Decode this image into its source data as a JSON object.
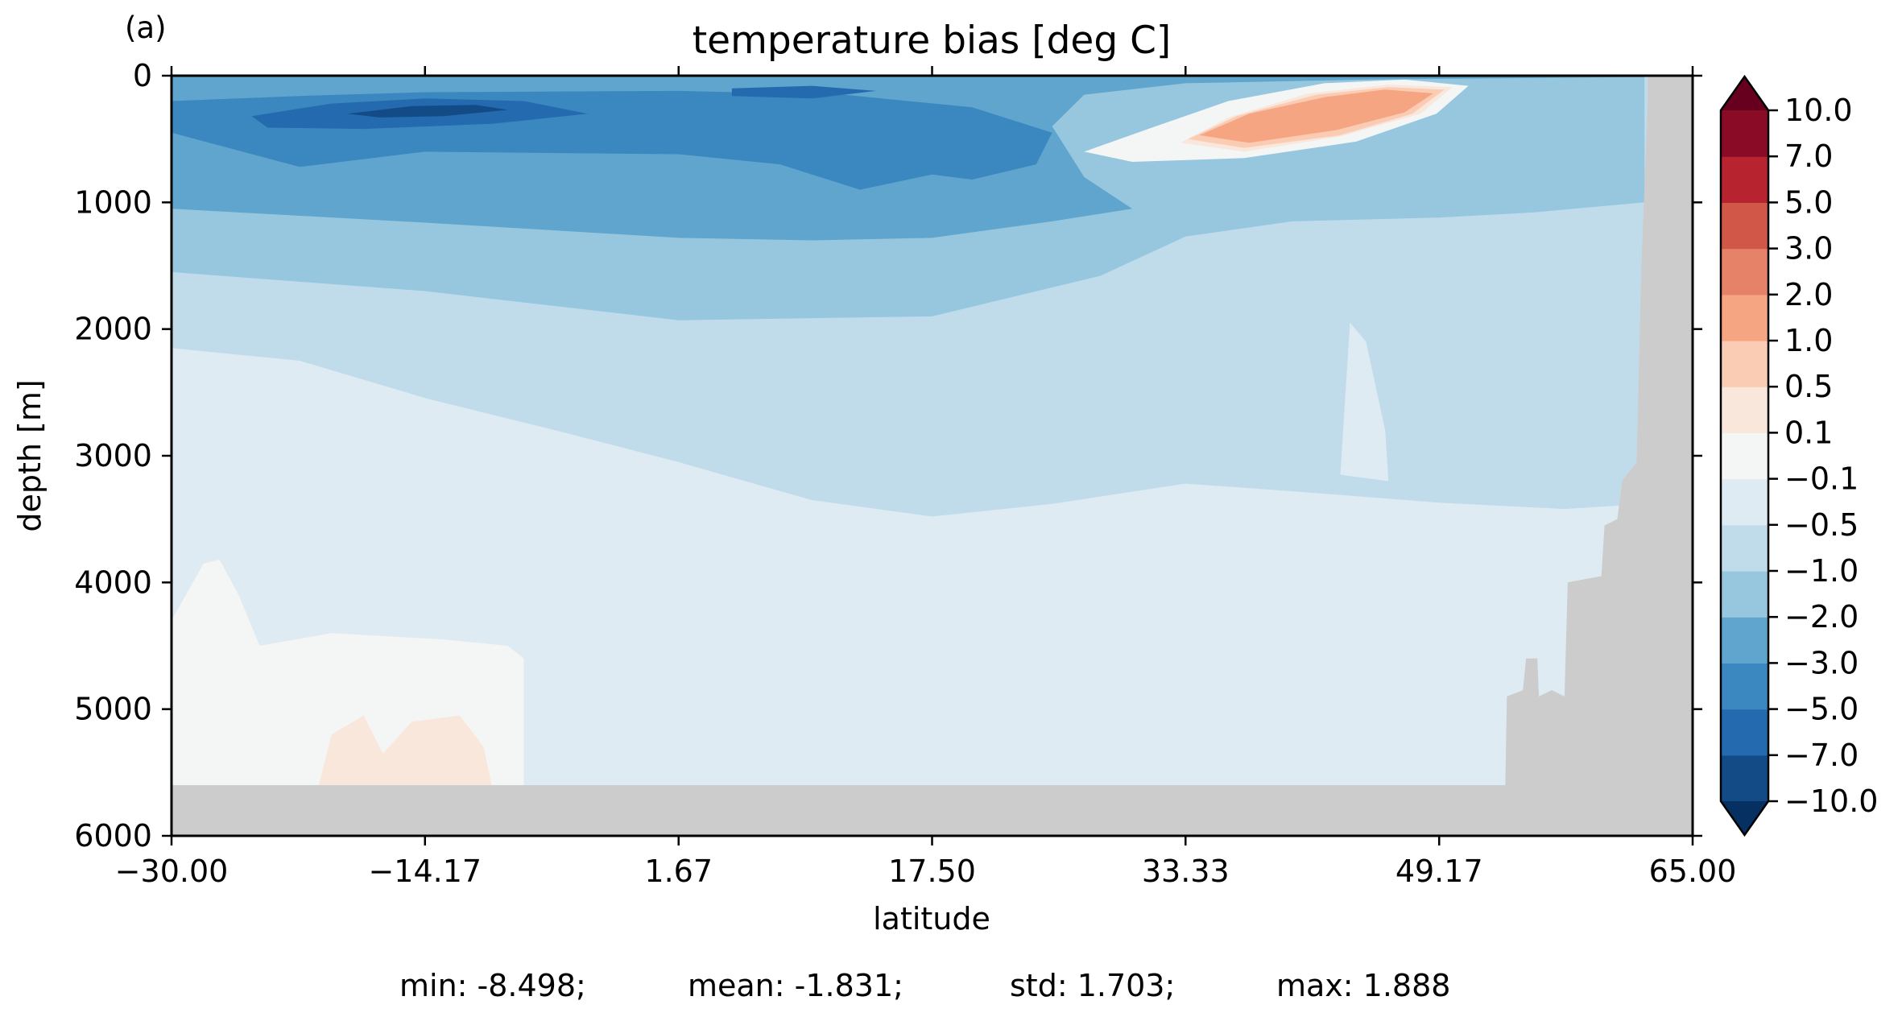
{
  "panel_label": "(a)",
  "stats": {
    "min": "min: -8.498;",
    "mean": "mean: -1.831;",
    "std": "std: 1.703;",
    "max": "max: 1.888"
  },
  "chart_data": {
    "type": "heatmap",
    "title": "temperature bias [deg C]",
    "xlabel": "latitude",
    "ylabel": "depth [m]",
    "xlim": [
      -30.0,
      65.0
    ],
    "ylim": [
      6000,
      0
    ],
    "y_inverted": true,
    "x_ticks": [
      -30.0,
      -14.17,
      1.67,
      17.5,
      33.33,
      49.17,
      65.0
    ],
    "x_tick_labels": [
      "−30.00",
      "−14.17",
      "1.67",
      "17.50",
      "33.33",
      "49.17",
      "65.00"
    ],
    "y_ticks": [
      0,
      1000,
      2000,
      3000,
      4000,
      5000,
      6000
    ],
    "y_tick_labels": [
      "0",
      "1000",
      "2000",
      "3000",
      "4000",
      "5000",
      "6000"
    ],
    "grid": false,
    "colormap": "RdBu_r",
    "land_color": "#cccccc",
    "colorbar": {
      "position": "right",
      "extend": "both",
      "levels": [
        -10.0,
        -7.0,
        -5.0,
        -3.0,
        -2.0,
        -1.0,
        -0.5,
        -0.1,
        0.1,
        0.5,
        1.0,
        2.0,
        3.0,
        5.0,
        7.0,
        10.0
      ],
      "tick_labels": [
        "−10.0",
        "−7.0",
        "−5.0",
        "−3.0",
        "−2.0",
        "−1.0",
        "−0.5",
        "−0.1",
        "0.1",
        "0.5",
        "1.0",
        "2.0",
        "3.0",
        "5.0",
        "7.0",
        "10.0"
      ],
      "colors": [
        "#134b87",
        "#246aae",
        "#3a88bf",
        "#5fa5cd",
        "#97c7df",
        "#c0dceb",
        "#deebf2",
        "#f4f6f6",
        "#fae7dc",
        "#fbccb4",
        "#f6a582",
        "#e58267",
        "#d15749",
        "#b7232f",
        "#8a0b25"
      ],
      "under_color": "#053061",
      "over_color": "#67001f"
    },
    "regions": [
      {
        "bias": "-1.0 to -0.5",
        "color": "#c0dceb",
        "polygon": [
          [
            -30,
            0
          ],
          [
            65,
            0
          ],
          [
            65,
            6000
          ],
          [
            -30,
            6000
          ]
        ]
      },
      {
        "bias": "-0.5 to -0.1",
        "color": "#deebf2",
        "polygon": [
          [
            -30,
            2150
          ],
          [
            -22,
            2250
          ],
          [
            -14,
            2550
          ],
          [
            -6,
            2800
          ],
          [
            1.67,
            3050
          ],
          [
            10,
            3350
          ],
          [
            17.5,
            3480
          ],
          [
            25,
            3380
          ],
          [
            33.33,
            3220
          ],
          [
            40,
            3280
          ],
          [
            49.17,
            3370
          ],
          [
            57,
            3420
          ],
          [
            62,
            3380
          ],
          [
            62,
            5600
          ],
          [
            -30,
            5600
          ]
        ]
      },
      {
        "bias": "-2.0 to -1.0",
        "color": "#97c7df",
        "polygon": [
          [
            -30,
            0
          ],
          [
            65,
            0
          ],
          [
            62,
            0
          ],
          [
            62,
            1000
          ],
          [
            55,
            1080
          ],
          [
            49.17,
            1120
          ],
          [
            40,
            1150
          ],
          [
            33.33,
            1270
          ],
          [
            28,
            1580
          ],
          [
            17.5,
            1900
          ],
          [
            1.67,
            1930
          ],
          [
            -14.17,
            1700
          ],
          [
            -30,
            1550
          ]
        ]
      },
      {
        "bias": "-3.0 to -2.0",
        "color": "#5fa5cd",
        "polygon": [
          [
            -30,
            0
          ],
          [
            62,
            0
          ],
          [
            62,
            10
          ],
          [
            45,
            30
          ],
          [
            33.33,
            60
          ],
          [
            27,
            150
          ],
          [
            25,
            400
          ],
          [
            27,
            800
          ],
          [
            30,
            1050
          ],
          [
            25,
            1150
          ],
          [
            17.5,
            1280
          ],
          [
            10,
            1300
          ],
          [
            1.67,
            1280
          ],
          [
            -14.17,
            1160
          ],
          [
            -30,
            1050
          ]
        ]
      },
      {
        "bias": "-5.0 to -3.0",
        "color": "#3a88bf",
        "polygon": [
          [
            -30,
            200
          ],
          [
            -22,
            160
          ],
          [
            -14.17,
            130
          ],
          [
            1.67,
            120
          ],
          [
            12,
            150
          ],
          [
            20,
            250
          ],
          [
            25,
            450
          ],
          [
            24,
            700
          ],
          [
            20,
            820
          ],
          [
            17.5,
            780
          ],
          [
            13,
            900
          ],
          [
            8,
            700
          ],
          [
            1.67,
            620
          ],
          [
            -14.17,
            600
          ],
          [
            -22,
            720
          ],
          [
            -30,
            450
          ]
        ]
      },
      {
        "bias": "-7.0 to -5.0",
        "color": "#246aae",
        "polygon": [
          [
            -25,
            320
          ],
          [
            -20,
            220
          ],
          [
            -14.17,
            180
          ],
          [
            -8,
            200
          ],
          [
            -4,
            300
          ],
          [
            -10,
            380
          ],
          [
            -18,
            420
          ],
          [
            -24,
            410
          ]
        ]
      },
      {
        "bias": "-10.0 to -7.0",
        "color": "#134b87",
        "polygon": [
          [
            -19,
            300
          ],
          [
            -15,
            240
          ],
          [
            -11,
            230
          ],
          [
            -9,
            270
          ],
          [
            -13,
            320
          ],
          [
            -17,
            330
          ]
        ]
      },
      {
        "bias": "-7.0 to -5.0",
        "color": "#246aae",
        "polygon": [
          [
            5,
            100
          ],
          [
            10,
            80
          ],
          [
            14,
            120
          ],
          [
            10,
            180
          ],
          [
            5,
            160
          ]
        ]
      },
      {
        "bias": "-0.1 to 0.1",
        "color": "#f4f6f6",
        "polygon": [
          [
            27,
            600
          ],
          [
            31,
            420
          ],
          [
            36,
            200
          ],
          [
            42,
            60
          ],
          [
            47,
            30
          ],
          [
            51,
            80
          ],
          [
            49,
            300
          ],
          [
            44,
            520
          ],
          [
            37,
            650
          ],
          [
            30,
            680
          ]
        ]
      },
      {
        "bias": "0.1 to 0.5",
        "color": "#fae7dc",
        "polygon": [
          [
            33,
            530
          ],
          [
            36,
            330
          ],
          [
            41,
            140
          ],
          [
            46,
            70
          ],
          [
            50,
            90
          ],
          [
            48,
            300
          ],
          [
            43,
            480
          ],
          [
            37,
            600
          ]
        ]
      },
      {
        "bias": "0.5 to 1.0",
        "color": "#fbccb4",
        "polygon": [
          [
            33.5,
            500
          ],
          [
            36.5,
            320
          ],
          [
            41.5,
            150
          ],
          [
            46,
            90
          ],
          [
            49.5,
            110
          ],
          [
            47.5,
            300
          ],
          [
            43,
            470
          ],
          [
            37,
            570
          ]
        ]
      },
      {
        "bias": "1.0 to 2.0",
        "color": "#f6a582",
        "polygon": [
          [
            34.2,
            470
          ],
          [
            37.3,
            300
          ],
          [
            42,
            170
          ],
          [
            45.8,
            110
          ],
          [
            48.8,
            140
          ],
          [
            47,
            290
          ],
          [
            42.7,
            430
          ],
          [
            37.3,
            530
          ]
        ]
      },
      {
        "bias": "-0.5 to -0.1",
        "color": "#deebf2",
        "polygon": [
          [
            43,
            3150
          ],
          [
            43.6,
            1950
          ],
          [
            44.6,
            2100
          ],
          [
            45.8,
            2800
          ],
          [
            46,
            3200
          ]
        ]
      },
      {
        "bias": "-0.1 to 0.1",
        "color": "#f4f6f6",
        "polygon": [
          [
            -30,
            4300
          ],
          [
            -28,
            3850
          ],
          [
            -27,
            3820
          ],
          [
            -25.8,
            4100
          ],
          [
            -24.5,
            4500
          ],
          [
            -20,
            4400
          ],
          [
            -13,
            4450
          ],
          [
            -9,
            4500
          ],
          [
            -8,
            4600
          ],
          [
            -8,
            5600
          ],
          [
            -30,
            5600
          ]
        ]
      },
      {
        "bias": "0.1 to 0.5",
        "color": "#fae7dc",
        "polygon": [
          [
            -20.8,
            5600
          ],
          [
            -20,
            5200
          ],
          [
            -18,
            5050
          ],
          [
            -16.8,
            5350
          ],
          [
            -15,
            5100
          ],
          [
            -12,
            5050
          ],
          [
            -10.5,
            5300
          ],
          [
            -10,
            5600
          ]
        ]
      }
    ],
    "land": [
      {
        "polygon": [
          [
            -30,
            5600
          ],
          [
            65,
            5600
          ],
          [
            65,
            6000
          ],
          [
            -30,
            6000
          ]
        ]
      },
      {
        "polygon": [
          [
            53.3,
            5600
          ],
          [
            53.4,
            4900
          ],
          [
            54.4,
            4850
          ],
          [
            54.6,
            4600
          ],
          [
            55.3,
            4600
          ],
          [
            55.4,
            4900
          ],
          [
            56.2,
            4850
          ],
          [
            57,
            4900
          ],
          [
            57.2,
            4000
          ],
          [
            59.3,
            3950
          ],
          [
            59.5,
            3550
          ],
          [
            60.3,
            3500
          ],
          [
            60.6,
            3200
          ],
          [
            61.5,
            3050
          ],
          [
            61.8,
            1500
          ],
          [
            62.2,
            200
          ],
          [
            62.2,
            0
          ],
          [
            65,
            0
          ],
          [
            65,
            5600
          ]
        ]
      }
    ]
  }
}
